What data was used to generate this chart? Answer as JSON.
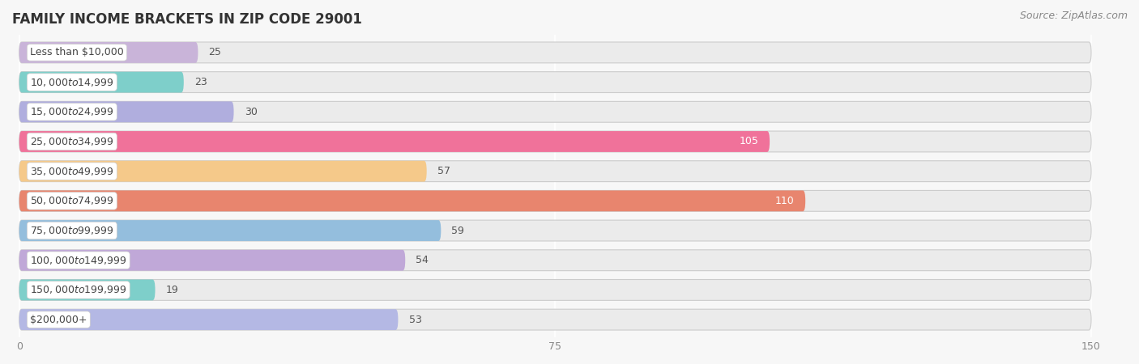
{
  "title": "FAMILY INCOME BRACKETS IN ZIP CODE 29001",
  "source": "Source: ZipAtlas.com",
  "categories": [
    "Less than $10,000",
    "$10,000 to $14,999",
    "$15,000 to $24,999",
    "$25,000 to $34,999",
    "$35,000 to $49,999",
    "$50,000 to $74,999",
    "$75,000 to $99,999",
    "$100,000 to $149,999",
    "$150,000 to $199,999",
    "$200,000+"
  ],
  "values": [
    25,
    23,
    30,
    105,
    57,
    110,
    59,
    54,
    19,
    53
  ],
  "bar_colors": [
    "#c9b4d9",
    "#7ecfca",
    "#b0aede",
    "#f0729a",
    "#f5c98a",
    "#e8856e",
    "#94bedd",
    "#c0a8d8",
    "#7ecfca",
    "#b4b8e4"
  ],
  "label_colors": [
    "black",
    "black",
    "black",
    "white",
    "black",
    "white",
    "black",
    "black",
    "black",
    "black"
  ],
  "xmax": 150,
  "xticks": [
    0,
    75,
    150
  ],
  "background_color": "#f7f7f7",
  "bar_bg_color": "#ebebeb",
  "title_fontsize": 12,
  "source_fontsize": 9,
  "label_fontsize": 9,
  "value_fontsize": 9
}
